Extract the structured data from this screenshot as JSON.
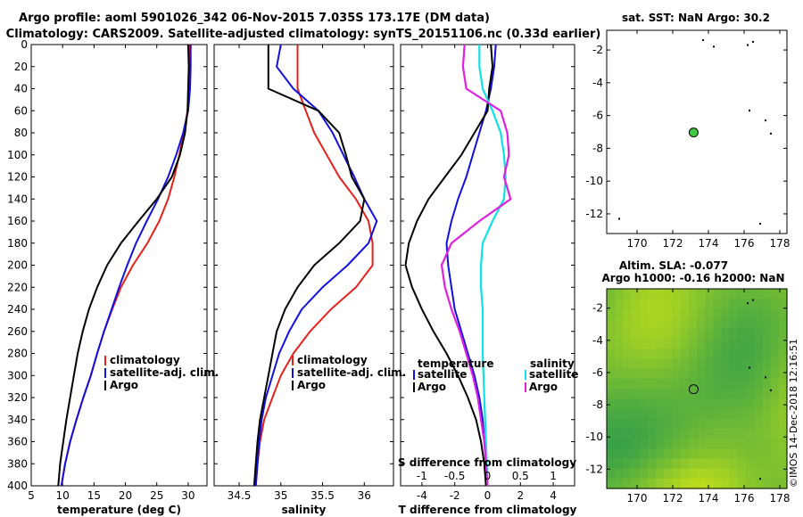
{
  "title_line1": "Argo profile: aoml 5901026_342 06-Nov-2015 7.035S 173.17E (DM data)",
  "title_line2": "Climatology: CARS2009. Satellite-adjusted climatology: synTS_20151106.nc (0.33d earlier)",
  "watermark": "©IMOS 14-Dec-2018 12:16:51",
  "colors": {
    "climatology": "#e8201a",
    "satellite": "#1010e0",
    "argo": "#000000",
    "sat_t": "#1010e0",
    "sat_s": "#10e0e8",
    "argo_s": "#e020e0",
    "marker": "#3ec83e"
  },
  "chart_data": [
    {
      "type": "line",
      "id": "temperature",
      "xlabel": "temperature (deg C)",
      "ylabel": "",
      "xlim": [
        5,
        33
      ],
      "ylim": [
        400,
        0
      ],
      "xticks": [
        5,
        10,
        15,
        20,
        25,
        30
      ],
      "yticks": [
        0,
        20,
        40,
        60,
        80,
        100,
        120,
        140,
        160,
        180,
        200,
        220,
        240,
        260,
        280,
        300,
        320,
        340,
        360,
        380,
        400
      ],
      "legend": [
        "climatology",
        "satellite-adj. clim.",
        "Argo"
      ],
      "series": [
        {
          "name": "climatology",
          "depth": [
            0,
            20,
            40,
            60,
            80,
            100,
            120,
            140,
            160,
            180,
            200,
            220,
            240,
            260,
            280,
            300,
            320,
            340,
            360,
            380,
            400
          ],
          "values": [
            30.2,
            30.2,
            30.1,
            29.9,
            29.3,
            28.6,
            27.8,
            26.8,
            25.4,
            23.5,
            21.2,
            19.3,
            17.9,
            16.6,
            15.5,
            14.5,
            13.3,
            12.2,
            11.2,
            10.4,
            9.8
          ]
        },
        {
          "name": "satellite-adj. clim.",
          "depth": [
            0,
            20,
            40,
            60,
            80,
            100,
            120,
            140,
            160,
            180,
            200,
            220,
            240,
            260,
            280,
            300,
            320,
            340,
            360,
            380,
            400
          ],
          "values": [
            30.4,
            30.4,
            30.3,
            30.0,
            29.2,
            28.1,
            26.8,
            25.2,
            23.4,
            21.7,
            20.3,
            19.0,
            17.8,
            16.6,
            15.5,
            14.5,
            13.3,
            12.2,
            11.2,
            10.4,
            9.8
          ]
        },
        {
          "name": "Argo",
          "depth": [
            0,
            20,
            40,
            60,
            80,
            100,
            120,
            140,
            160,
            180,
            200,
            220,
            240,
            260,
            280,
            300,
            320,
            340,
            360,
            380,
            400
          ],
          "values": [
            30.0,
            30.1,
            30.0,
            29.9,
            29.5,
            28.7,
            27.4,
            25.0,
            22.1,
            19.3,
            17.1,
            15.5,
            14.2,
            13.2,
            12.4,
            11.8,
            11.2,
            10.6,
            10.1,
            9.6,
            9.3
          ]
        }
      ]
    },
    {
      "type": "line",
      "id": "salinity",
      "xlabel": "salinity",
      "ylabel": "",
      "xlim": [
        34.2,
        36.35
      ],
      "ylim": [
        400,
        0
      ],
      "xticks": [
        34.5,
        35,
        35.5,
        36
      ],
      "legend": [
        "climatology",
        "satellite-adj. clim.",
        "Argo"
      ],
      "series": [
        {
          "name": "climatology",
          "depth": [
            0,
            20,
            40,
            60,
            80,
            100,
            120,
            140,
            160,
            180,
            200,
            220,
            240,
            260,
            280,
            300,
            320,
            340,
            360,
            380,
            400
          ],
          "values": [
            35.2,
            35.2,
            35.2,
            35.3,
            35.4,
            35.55,
            35.7,
            35.9,
            36.05,
            36.1,
            36.1,
            35.9,
            35.6,
            35.35,
            35.15,
            35.0,
            34.9,
            34.8,
            34.75,
            34.72,
            34.7
          ]
        },
        {
          "name": "satellite-adj. clim.",
          "depth": [
            0,
            20,
            40,
            60,
            80,
            100,
            120,
            140,
            160,
            180,
            200,
            220,
            240,
            260,
            280,
            300,
            320,
            340,
            360,
            380,
            400
          ],
          "values": [
            35.0,
            34.95,
            35.15,
            35.45,
            35.62,
            35.75,
            35.88,
            36.0,
            36.15,
            36.05,
            35.8,
            35.5,
            35.25,
            35.1,
            34.98,
            34.9,
            34.82,
            34.77,
            34.74,
            34.72,
            34.7
          ]
        },
        {
          "name": "Argo",
          "depth": [
            0,
            20,
            40,
            60,
            80,
            100,
            120,
            140,
            160,
            180,
            200,
            220,
            240,
            260,
            280,
            300,
            320,
            340,
            360,
            380,
            400
          ],
          "values": [
            34.85,
            34.85,
            34.85,
            35.45,
            35.7,
            35.78,
            35.85,
            36.0,
            35.95,
            35.7,
            35.4,
            35.2,
            35.05,
            34.95,
            34.9,
            34.85,
            34.8,
            34.75,
            34.72,
            34.7,
            34.68
          ]
        }
      ]
    },
    {
      "type": "line",
      "id": "difference",
      "xlabel": "T difference from climatology",
      "xlabel_top": "S difference from climatology",
      "xlim": [
        -5.3,
        5.3
      ],
      "ylim": [
        400,
        0
      ],
      "xticks": [
        -4,
        -2,
        0,
        2,
        4
      ],
      "xticks_top": [
        {
          "pos": -4,
          "label": "-1"
        },
        {
          "pos": -2,
          "label": "-0.5"
        },
        {
          "pos": 0,
          "label": "0"
        },
        {
          "pos": 2,
          "label": "0.5"
        },
        {
          "pos": 4,
          "label": "1"
        }
      ],
      "legend_left_title": "temperature",
      "legend_right_title": "salinity",
      "legend": [
        "satellite",
        "Argo",
        "satellite",
        "Argo"
      ],
      "series": [
        {
          "name": "T satellite",
          "depth": [
            0,
            20,
            40,
            60,
            80,
            100,
            120,
            140,
            160,
            180,
            200,
            220,
            240,
            260,
            280,
            300,
            320,
            340,
            360,
            380,
            400
          ],
          "values": [
            0.5,
            0.4,
            0.2,
            -0.1,
            -0.5,
            -0.9,
            -1.3,
            -1.8,
            -2.2,
            -2.5,
            -2.4,
            -2.2,
            -2.0,
            -1.6,
            -1.2,
            -0.8,
            -0.5,
            -0.3,
            -0.2,
            -0.1,
            -0.1
          ]
        },
        {
          "name": "T Argo",
          "depth": [
            0,
            20,
            40,
            60,
            80,
            100,
            120,
            140,
            160,
            180,
            200,
            220,
            240,
            260,
            280,
            300,
            320,
            340,
            360,
            380,
            400
          ],
          "values": [
            0.2,
            0.3,
            0.1,
            0.0,
            -0.8,
            -1.6,
            -2.6,
            -3.6,
            -4.3,
            -4.8,
            -5.0,
            -4.6,
            -4.0,
            -3.3,
            -2.5,
            -1.8,
            -1.2,
            -0.7,
            -0.4,
            -0.2,
            -0.1
          ]
        },
        {
          "name": "S satellite",
          "depth": [
            0,
            20,
            40,
            60,
            80,
            100,
            120,
            140,
            160,
            180,
            200,
            220,
            240,
            260,
            280,
            300,
            320,
            340,
            360,
            380,
            400
          ],
          "values": [
            -0.5,
            -0.5,
            -0.3,
            0.3,
            0.8,
            1.0,
            1.1,
            1.0,
            0.3,
            -0.3,
            -0.4,
            -0.4,
            -0.3,
            -0.3,
            -0.3,
            -0.25,
            -0.2,
            -0.15,
            -0.1,
            -0.05,
            0.0
          ]
        },
        {
          "name": "S Argo",
          "depth": [
            0,
            20,
            40,
            60,
            80,
            100,
            120,
            140,
            160,
            180,
            200,
            220,
            240,
            260,
            280,
            300,
            320,
            340,
            360,
            380,
            400
          ],
          "values": [
            -1.4,
            -1.5,
            -1.3,
            0.8,
            1.2,
            1.3,
            1.0,
            1.4,
            -0.5,
            -2.2,
            -2.8,
            -2.6,
            -2.2,
            -1.7,
            -1.3,
            -0.9,
            -0.6,
            -0.4,
            -0.2,
            -0.1,
            0.0
          ]
        }
      ]
    },
    {
      "type": "scatter",
      "id": "sst_map",
      "title": "sat. SST: NaN Argo: 30.2",
      "xlim": [
        168.3,
        178.4
      ],
      "ylim": [
        -13.2,
        -0.8
      ],
      "xticks": [
        170,
        172,
        174,
        176,
        178
      ],
      "yticks": [
        -2,
        -4,
        -6,
        -8,
        -10,
        -12
      ],
      "argo_position": {
        "lon": 173.17,
        "lat": -7.035
      },
      "islands": [
        [
          173.7,
          -1.4
        ],
        [
          174.3,
          -1.8
        ],
        [
          176.2,
          -1.7
        ],
        [
          176.5,
          -1.5
        ],
        [
          176.3,
          -5.7
        ],
        [
          177.2,
          -6.3
        ],
        [
          177.5,
          -7.1
        ],
        [
          169.0,
          -12.3
        ],
        [
          176.9,
          -12.6
        ]
      ]
    },
    {
      "type": "heatmap",
      "id": "sla_map",
      "title_line1": "Altim. SLA: -0.077",
      "title_line2": "Argo h1000: -0.16 h2000: NaN",
      "xlim": [
        168.3,
        178.4
      ],
      "ylim": [
        -13.2,
        -0.8
      ],
      "xticks": [
        170,
        172,
        174,
        176,
        178
      ],
      "yticks": [
        -2,
        -4,
        -6,
        -8,
        -10,
        -12
      ],
      "argo_position": {
        "lon": 173.17,
        "lat": -7.035
      },
      "islands": [
        [
          176.2,
          -1.7
        ],
        [
          176.5,
          -1.5
        ],
        [
          176.3,
          -5.7
        ],
        [
          177.2,
          -6.3
        ],
        [
          177.5,
          -7.1
        ],
        [
          176.9,
          -12.6
        ]
      ]
    }
  ]
}
